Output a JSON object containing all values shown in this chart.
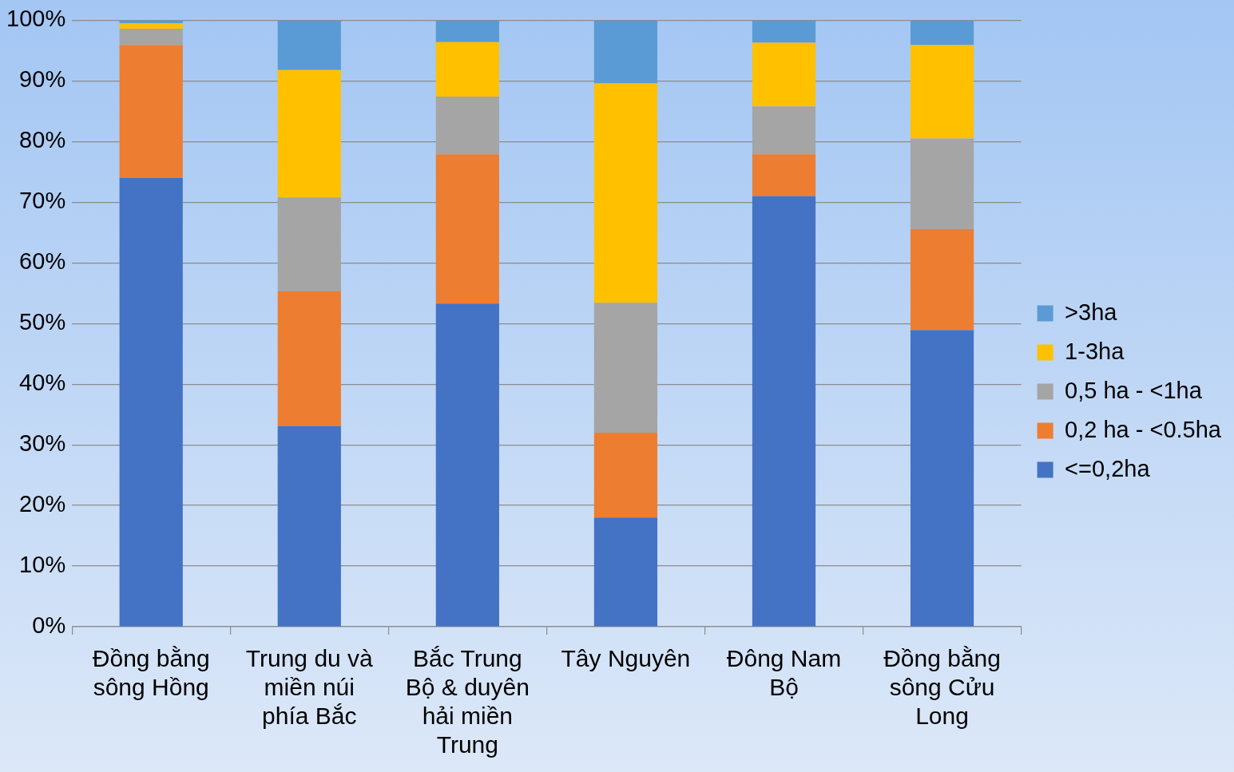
{
  "chart_data": {
    "type": "bar",
    "stacked": true,
    "categories": [
      "Đồng bằng sông Hồng",
      "Trung du và miền núi phía Bắc",
      "Bắc Trung Bộ & duyên hải miền Trung",
      "Tây Nguyên",
      "Đông Nam Bộ",
      "Đồng bằng sông Cửu Long"
    ],
    "series": [
      {
        "name": "<=0,2ha",
        "color": "#4472c4",
        "values": [
          74.0,
          33.1,
          53.3,
          18.0,
          71.0,
          48.9
        ]
      },
      {
        "name": "0,2 ha - <0.5ha",
        "color": "#ed7d31",
        "values": [
          21.9,
          22.2,
          24.6,
          14.0,
          6.9,
          16.7
        ]
      },
      {
        "name": "0,5 ha - <1ha",
        "color": "#a5a5a5",
        "values": [
          2.7,
          15.5,
          9.5,
          21.4,
          7.9,
          14.9
        ]
      },
      {
        "name": "1-3ha",
        "color": "#ffc000",
        "values": [
          0.9,
          21.0,
          9.0,
          36.2,
          10.5,
          15.4
        ]
      },
      {
        "name": ">3ha",
        "color": "#5b9bd5",
        "values": [
          0.5,
          8.2,
          3.6,
          10.4,
          3.7,
          4.1
        ]
      }
    ],
    "ylim": [
      0,
      100
    ],
    "yticks": [
      {
        "value": 0,
        "label": "0%"
      },
      {
        "value": 10,
        "label": "10%"
      },
      {
        "value": 20,
        "label": "20%"
      },
      {
        "value": 30,
        "label": "30%"
      },
      {
        "value": 40,
        "label": "40%"
      },
      {
        "value": 50,
        "label": "50%"
      },
      {
        "value": 60,
        "label": "60%"
      },
      {
        "value": 70,
        "label": "70%"
      },
      {
        "value": 80,
        "label": "80%"
      },
      {
        "value": 90,
        "label": "90%"
      },
      {
        "value": 100,
        "label": "100%"
      }
    ],
    "grid": "y",
    "legend": "right"
  }
}
